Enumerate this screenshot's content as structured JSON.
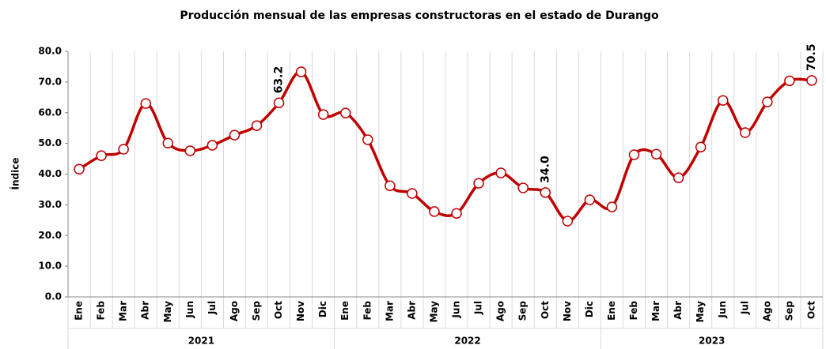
{
  "chart_data": {
    "type": "line",
    "title": "Producción mensual de las empresas constructoras en el estado de Durango",
    "y_label": "Índice",
    "categories": [
      "Ene",
      "Feb",
      "Mar",
      "Abr",
      "May",
      "Jun",
      "Jul",
      "Ago",
      "Sep",
      "Oct",
      "Nov",
      "Dic",
      "Ene",
      "Feb",
      "Mar",
      "Abr",
      "May",
      "Jun",
      "Jul",
      "Ago",
      "Sep",
      "Oct",
      "Nov",
      "Dic",
      "Ene",
      "Feb",
      "Mar",
      "Abr",
      "May",
      "Jun",
      "Jul",
      "Ago",
      "Sep",
      "Oct"
    ],
    "years": [
      "2021",
      "2022",
      "2023"
    ],
    "values": [
      41.6,
      46.0,
      48.1,
      63.0,
      50.1,
      47.6,
      49.4,
      52.7,
      55.8,
      63.2,
      73.3,
      59.4,
      59.9,
      51.2,
      36.2,
      33.7,
      27.8,
      27.2,
      37.0,
      40.4,
      35.5,
      34.0,
      24.7,
      31.6,
      29.3,
      46.3,
      46.5,
      38.8,
      48.8,
      64.0,
      53.5,
      63.5,
      70.4,
      70.5
    ],
    "value_labels": [
      null,
      null,
      null,
      null,
      null,
      null,
      null,
      null,
      null,
      "63.2",
      null,
      null,
      null,
      null,
      null,
      null,
      null,
      null,
      null,
      null,
      null,
      "34.0",
      null,
      null,
      null,
      null,
      null,
      null,
      null,
      null,
      null,
      null,
      null,
      "70.5"
    ],
    "color": "#c00000",
    "ylim": [
      0,
      80
    ],
    "yticks": [
      {
        "value": 0,
        "label": "0.0"
      },
      {
        "value": 10,
        "label": "10.0"
      },
      {
        "value": 20,
        "label": "20.0"
      },
      {
        "value": 30,
        "label": "30.0"
      },
      {
        "value": 40,
        "label": "40.0"
      },
      {
        "value": 50,
        "label": "50.0"
      },
      {
        "value": 60,
        "label": "60.0"
      },
      {
        "value": 70,
        "label": "70.0"
      },
      {
        "value": 80,
        "label": "80.0"
      }
    ],
    "grid": "x"
  }
}
